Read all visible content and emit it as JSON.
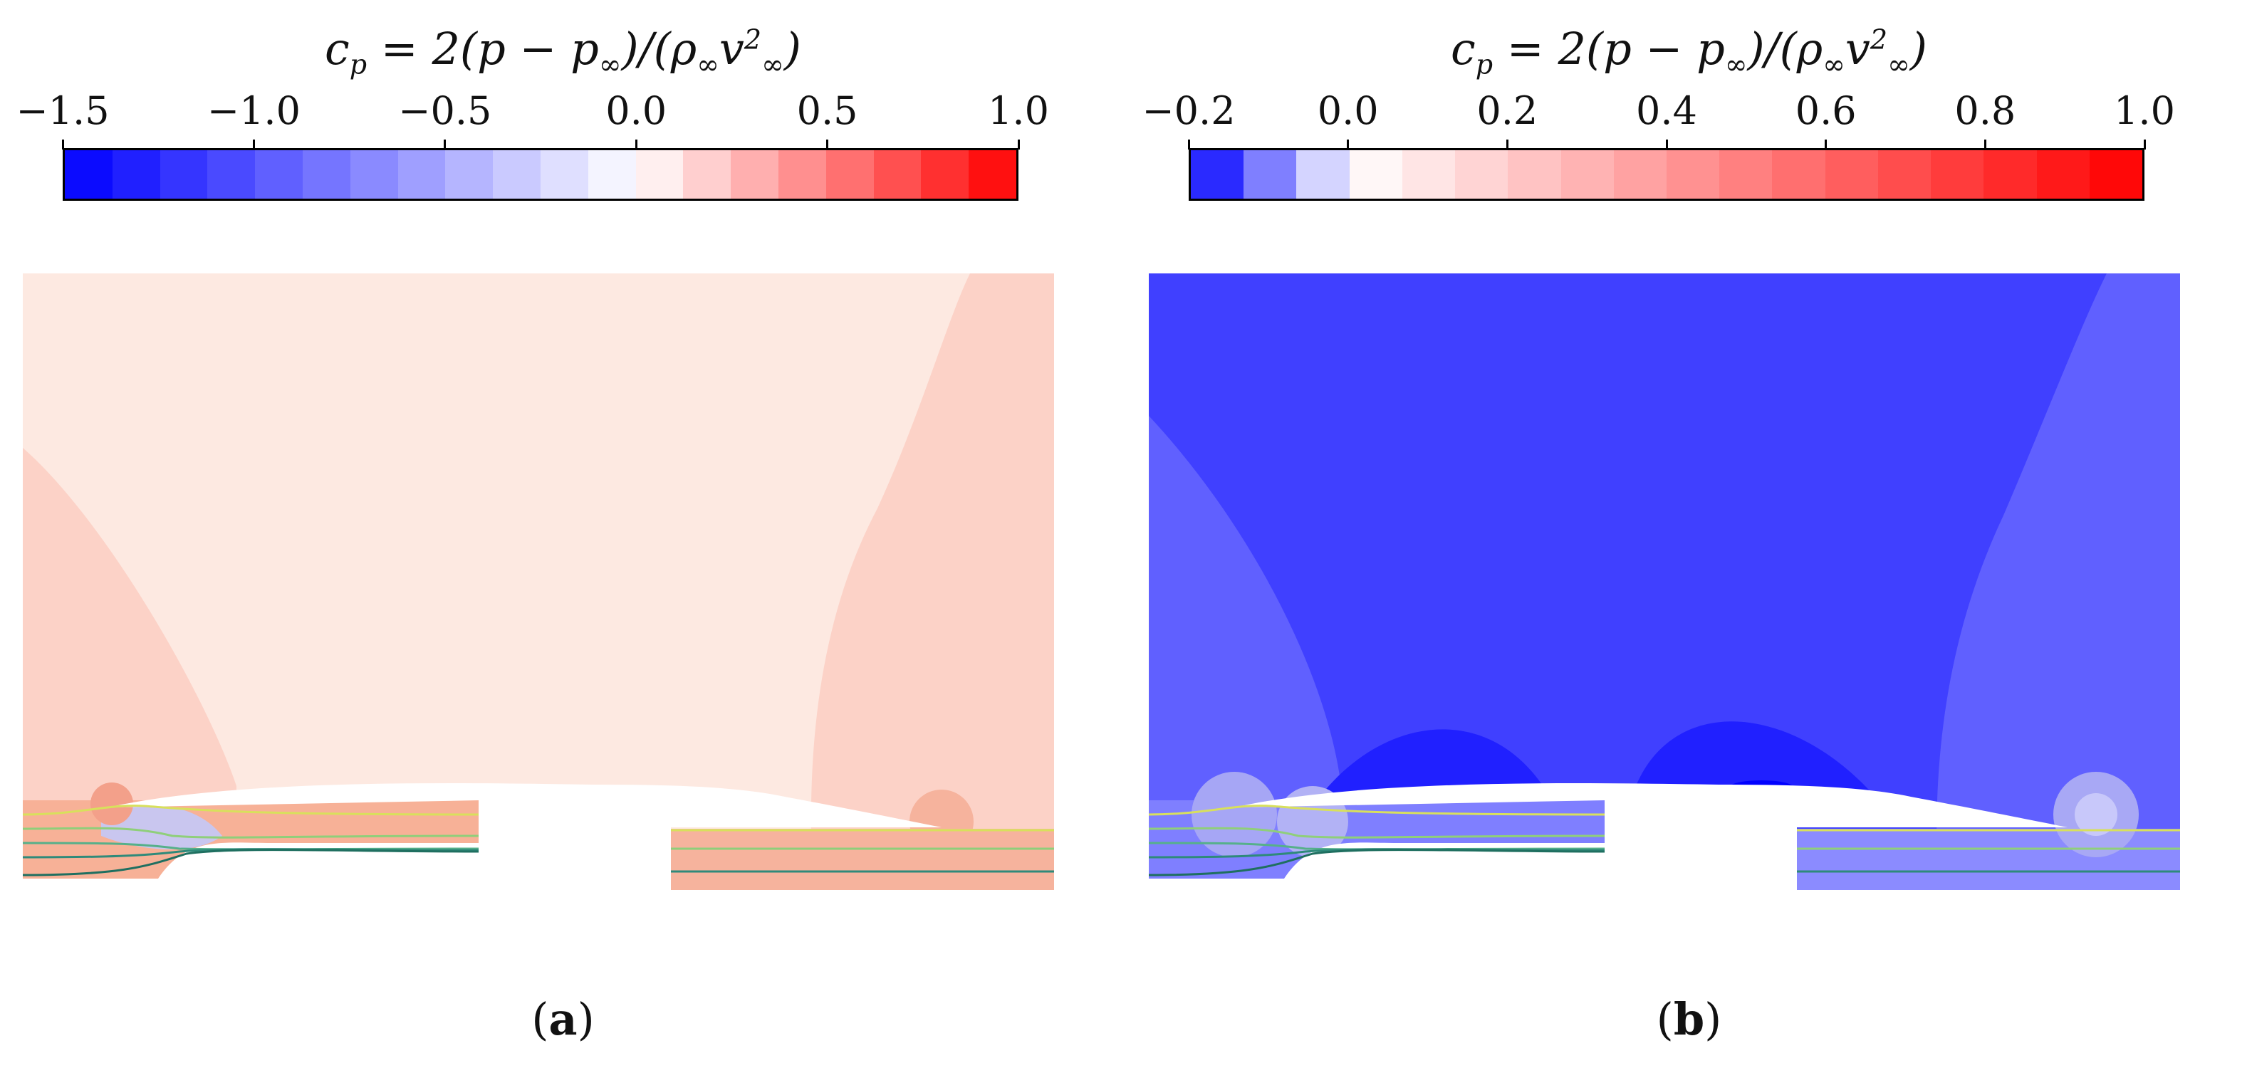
{
  "chart_data": [
    {
      "type": "heatmap",
      "panel_label": "a",
      "colorbar": {
        "label": "c_p = 2(p − p∞)/(ρ∞v∞²)",
        "min": -1.5,
        "max": 1.0,
        "ticks": [
          "−1.5",
          "−1.0",
          "−0.5",
          "0.0",
          "0.5",
          "1.0"
        ],
        "tick_values": [
          -1.5,
          -1.0,
          -0.5,
          0.0,
          0.5,
          1.0
        ],
        "levels": 20,
        "colormap": "bwr"
      },
      "field_colors": {
        "upper": "#fde9e1",
        "near_lobe": "#fcd2c7",
        "channel_left": "#f7b197",
        "channel_right": "#f6b39d",
        "dip": "#c9c6ef"
      }
    },
    {
      "type": "heatmap",
      "panel_label": "b",
      "colorbar": {
        "label": "c_p = 2(p − p∞)/(ρ∞v∞²)",
        "min": -0.2,
        "max": 1.0,
        "ticks": [
          "−0.2",
          "0.0",
          "0.2",
          "0.4",
          "0.6",
          "0.8",
          "1.0"
        ],
        "tick_values": [
          -0.2,
          0.0,
          0.2,
          0.4,
          0.6,
          0.8,
          1.0
        ],
        "levels": 18,
        "colormap": "bwr"
      },
      "field_colors": {
        "upper": "#4040ff",
        "side_lobe": "#6060ff",
        "bump_dark": "#2020ff",
        "channel_left": "#7f7fff",
        "channel_right": "#8b8bff"
      }
    }
  ],
  "captions": {
    "a_open": "(",
    "a_letter": "a",
    "a_close": ")",
    "b_open": "(",
    "b_letter": "b",
    "b_close": ")"
  },
  "cb_title_parts": {
    "lhs": "c",
    "sub": "p",
    "eq": " = 2(p − p",
    "inf": "∞",
    "mid": ")/(ρ",
    "inf2": "∞",
    "v": "v",
    "sup": "2",
    "inf3": "∞",
    "close": ")"
  }
}
